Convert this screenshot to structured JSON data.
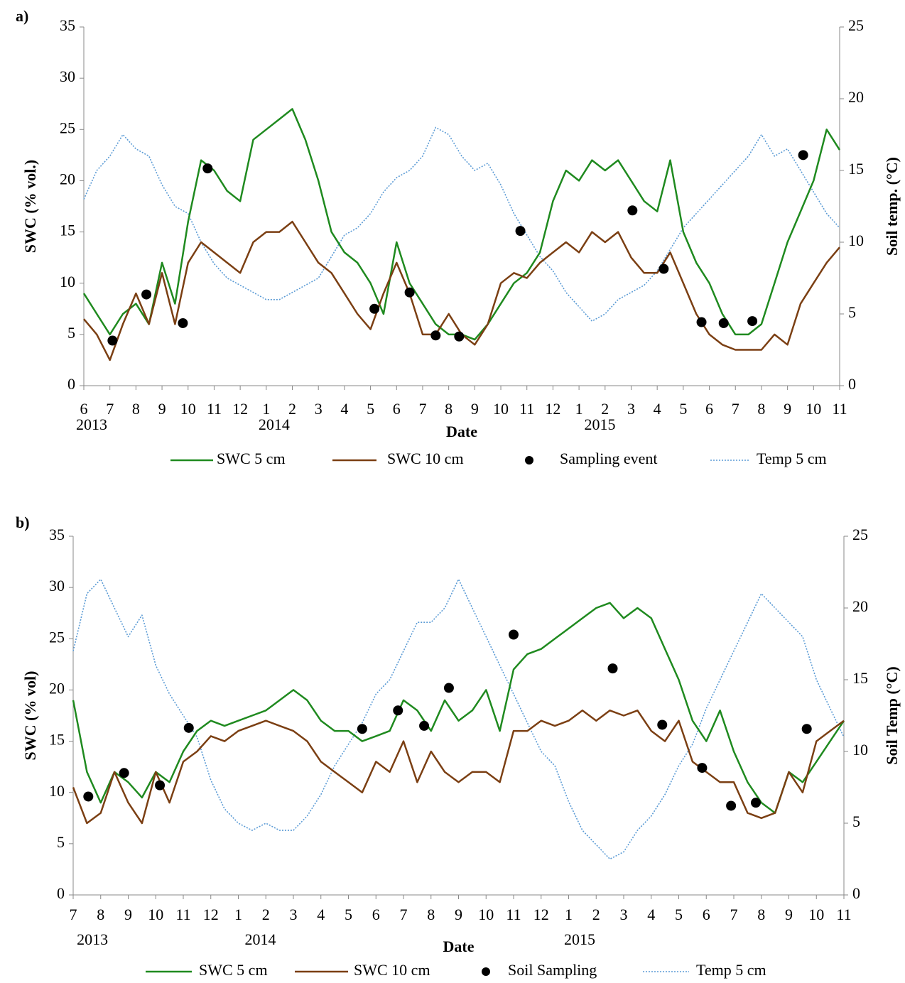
{
  "chart_data": [
    {
      "type": "line",
      "panel_label": "a)",
      "xlabel": "Date",
      "ylabel": "SWC (% vol.)",
      "y2label": "Soil temp. (°C)",
      "xlim": [
        0,
        29
      ],
      "xticks": [
        {
          "value": 0,
          "label": "6"
        },
        {
          "value": 1,
          "label": "7"
        },
        {
          "value": 2,
          "label": "8"
        },
        {
          "value": 3,
          "label": "9"
        },
        {
          "value": 4,
          "label": "10"
        },
        {
          "value": 5,
          "label": "11"
        },
        {
          "value": 6,
          "label": "12"
        },
        {
          "value": 7,
          "label": "1"
        },
        {
          "value": 8,
          "label": "2"
        },
        {
          "value": 9,
          "label": "3"
        },
        {
          "value": 10,
          "label": "4"
        },
        {
          "value": 11,
          "label": "5"
        },
        {
          "value": 12,
          "label": "6"
        },
        {
          "value": 13,
          "label": "7"
        },
        {
          "value": 14,
          "label": "8"
        },
        {
          "value": 15,
          "label": "9"
        },
        {
          "value": 16,
          "label": "10"
        },
        {
          "value": 17,
          "label": "11"
        },
        {
          "value": 18,
          "label": "12"
        },
        {
          "value": 19,
          "label": "1"
        },
        {
          "value": 20,
          "label": "2"
        },
        {
          "value": 21,
          "label": "3"
        },
        {
          "value": 22,
          "label": "4"
        },
        {
          "value": 23,
          "label": "5"
        },
        {
          "value": 24,
          "label": "6"
        },
        {
          "value": 25,
          "label": "7"
        },
        {
          "value": 26,
          "label": "8"
        },
        {
          "value": 27,
          "label": "9"
        },
        {
          "value": 28,
          "label": "10"
        },
        {
          "value": 29,
          "label": "11"
        }
      ],
      "year_labels": [
        {
          "label": "2013",
          "x": 0.3
        },
        {
          "label": "2014",
          "x": 7.3
        },
        {
          "label": "2015",
          "x": 19.8
        }
      ],
      "ylim": [
        0,
        35
      ],
      "yticks": [
        0,
        5,
        10,
        15,
        20,
        25,
        30,
        35
      ],
      "y2lim": [
        0,
        25
      ],
      "y2ticks": [
        0,
        5,
        10,
        15,
        20,
        25
      ],
      "x": [
        0,
        0.5,
        1,
        1.5,
        2,
        2.5,
        3,
        3.5,
        4,
        4.5,
        5,
        5.5,
        6,
        6.5,
        7,
        7.5,
        8,
        8.5,
        9,
        9.5,
        10,
        10.5,
        11,
        11.5,
        12,
        12.5,
        13,
        13.5,
        14,
        14.5,
        15,
        15.5,
        16,
        16.5,
        17,
        17.5,
        18,
        18.5,
        19,
        19.5,
        20,
        20.5,
        21,
        21.5,
        22,
        22.5,
        23,
        23.5,
        24,
        24.5,
        25,
        25.5,
        26,
        26.5,
        27,
        27.5,
        28,
        28.5,
        29
      ],
      "series": [
        {
          "name": "SWC 5 cm",
          "type": "line",
          "color": "#1f8a1f",
          "values": [
            9,
            7,
            5,
            7,
            8,
            6,
            12,
            8,
            16,
            22,
            21,
            19,
            18,
            24,
            25,
            26,
            27,
            24,
            20,
            15,
            13,
            12,
            10,
            7,
            14,
            10,
            8,
            6,
            5,
            5,
            4.5,
            6,
            8,
            10,
            11,
            13,
            18,
            21,
            20,
            22,
            21,
            22,
            20,
            18,
            17,
            22,
            15,
            12,
            10,
            7,
            5,
            5,
            6,
            10,
            14,
            17,
            20,
            25,
            23
          ]
        },
        {
          "name": "SWC 10 cm",
          "type": "line",
          "color": "#7b3f13",
          "values": [
            6.5,
            5,
            2.5,
            6,
            9,
            6,
            11,
            6,
            12,
            14,
            13,
            12,
            11,
            14,
            15,
            15,
            16,
            14,
            12,
            11,
            9,
            7,
            5.5,
            9,
            12,
            9,
            5,
            5,
            7,
            5,
            4,
            6,
            10,
            11,
            10.5,
            12,
            13,
            14,
            13,
            15,
            14,
            15,
            12.5,
            11,
            11,
            13,
            10,
            7,
            5,
            4,
            3.5,
            3.5,
            3.5,
            5,
            4,
            8,
            10,
            12,
            13.5
          ]
        },
        {
          "name": "Sampling event",
          "type": "scatter",
          "color": "#000000",
          "x": [
            1.1,
            2.4,
            3.8,
            4.75,
            11.15,
            12.5,
            13.5,
            14.4,
            16.75,
            21.05,
            22.25,
            23.7,
            24.55,
            25.65,
            27.6
          ],
          "values": [
            4.4,
            8.9,
            6.1,
            21.2,
            7.5,
            9.1,
            4.9,
            4.8,
            15.1,
            17.1,
            11.4,
            6.2,
            6.1,
            6.3,
            22.5
          ]
        },
        {
          "name": "Temp 5 cm",
          "type": "line",
          "dashed": true,
          "axis": "y2",
          "color": "#5b9bd5",
          "values": [
            13,
            15,
            16,
            17.5,
            16.5,
            16,
            14,
            12.5,
            12,
            10,
            8.5,
            7.5,
            7,
            6.5,
            6,
            6,
            6.5,
            7,
            7.5,
            9,
            10.5,
            11,
            12,
            13.5,
            14.5,
            15,
            16,
            18,
            17.5,
            16,
            15,
            15.5,
            14,
            12,
            10.5,
            9,
            8,
            6.5,
            5.5,
            4.5,
            5,
            6,
            6.5,
            7,
            8,
            9.5,
            11,
            12,
            13,
            14,
            15,
            16,
            17.5,
            16,
            16.5,
            15,
            13.5,
            12,
            11
          ]
        }
      ]
    },
    {
      "type": "line",
      "panel_label": "b)",
      "xlabel": "Date",
      "ylabel": "SWC (% vol)",
      "y2label": "Soil Temp (°C)",
      "xlim": [
        0,
        28
      ],
      "xticks": [
        {
          "value": 0,
          "label": "7"
        },
        {
          "value": 1,
          "label": "8"
        },
        {
          "value": 2,
          "label": "9"
        },
        {
          "value": 3,
          "label": "10"
        },
        {
          "value": 4,
          "label": "11"
        },
        {
          "value": 5,
          "label": "12"
        },
        {
          "value": 6,
          "label": "1"
        },
        {
          "value": 7,
          "label": "2"
        },
        {
          "value": 8,
          "label": "3"
        },
        {
          "value": 9,
          "label": "4"
        },
        {
          "value": 10,
          "label": "5"
        },
        {
          "value": 11,
          "label": "6"
        },
        {
          "value": 12,
          "label": "7"
        },
        {
          "value": 13,
          "label": "8"
        },
        {
          "value": 14,
          "label": "9"
        },
        {
          "value": 15,
          "label": "10"
        },
        {
          "value": 16,
          "label": "11"
        },
        {
          "value": 17,
          "label": "12"
        },
        {
          "value": 18,
          "label": "1"
        },
        {
          "value": 19,
          "label": "2"
        },
        {
          "value": 20,
          "label": "3"
        },
        {
          "value": 21,
          "label": "4"
        },
        {
          "value": 22,
          "label": "5"
        },
        {
          "value": 23,
          "label": "6"
        },
        {
          "value": 24,
          "label": "7"
        },
        {
          "value": 25,
          "label": "8"
        },
        {
          "value": 26,
          "label": "9"
        },
        {
          "value": 27,
          "label": "10"
        },
        {
          "value": 28,
          "label": "11"
        }
      ],
      "year_labels": [
        {
          "label": "2013",
          "x": 0.7
        },
        {
          "label": "2014",
          "x": 6.8
        },
        {
          "label": "2015",
          "x": 18.4
        }
      ],
      "ylim": [
        0,
        35
      ],
      "yticks": [
        0,
        5,
        10,
        15,
        20,
        25,
        30,
        35
      ],
      "y2lim": [
        0,
        25
      ],
      "y2ticks": [
        0,
        5,
        10,
        15,
        20,
        25
      ],
      "x": [
        0,
        0.5,
        1,
        1.5,
        2,
        2.5,
        3,
        3.5,
        4,
        4.5,
        5,
        5.5,
        6,
        6.5,
        7,
        7.5,
        8,
        8.5,
        9,
        9.5,
        10,
        10.5,
        11,
        11.5,
        12,
        12.5,
        13,
        13.5,
        14,
        14.5,
        15,
        15.5,
        16,
        16.5,
        17,
        17.5,
        18,
        18.5,
        19,
        19.5,
        20,
        20.5,
        21,
        21.5,
        22,
        22.5,
        23,
        23.5,
        24,
        24.5,
        25,
        25.5,
        26,
        26.5,
        27,
        27.5,
        28
      ],
      "series": [
        {
          "name": "SWC 5 cm",
          "type": "line",
          "color": "#1f8a1f",
          "values": [
            19,
            12,
            9,
            12,
            11,
            9.5,
            12,
            11,
            14,
            16,
            17,
            16.5,
            17,
            17.5,
            18,
            19,
            20,
            19,
            17,
            16,
            16,
            15,
            15.5,
            16,
            19,
            18,
            16,
            19,
            17,
            18,
            20,
            16,
            22,
            23.5,
            24,
            25,
            26,
            27,
            28,
            28.5,
            27,
            28,
            27,
            24,
            21,
            17,
            15,
            18,
            14,
            11,
            9,
            8,
            12,
            11,
            13,
            15,
            17
          ]
        },
        {
          "name": "SWC 10 cm",
          "type": "line",
          "color": "#7b3f13",
          "values": [
            10.5,
            7,
            8,
            12,
            9,
            7,
            12,
            9,
            13,
            14,
            15.5,
            15,
            16,
            16.5,
            17,
            16.5,
            16,
            15,
            13,
            12,
            11,
            10,
            13,
            12,
            15,
            11,
            14,
            12,
            11,
            12,
            12,
            11,
            16,
            16,
            17,
            16.5,
            17,
            18,
            17,
            18,
            17.5,
            18,
            16,
            15,
            17,
            13,
            12,
            11,
            11,
            8,
            7.5,
            8,
            12,
            10,
            15,
            16,
            17
          ]
        },
        {
          "name": "Soil Sampling",
          "type": "scatter",
          "color": "#000000",
          "x": [
            0.55,
            1.85,
            3.15,
            4.2,
            10.5,
            11.8,
            12.75,
            13.65,
            16,
            19.6,
            21.4,
            22.85,
            23.9,
            24.8,
            26.65
          ],
          "values": [
            9.6,
            11.9,
            10.7,
            16.3,
            16.2,
            18,
            16.5,
            20.2,
            25.4,
            22.1,
            16.6,
            12.4,
            8.7,
            9,
            16.2
          ]
        },
        {
          "name": "Temp 5 cm",
          "type": "line",
          "dashed": true,
          "axis": "y2",
          "color": "#5b9bd5",
          "values": [
            17,
            21,
            22,
            20,
            18,
            19.5,
            16,
            14,
            12.5,
            11,
            8,
            6,
            5,
            4.5,
            5,
            4.5,
            4.5,
            5.5,
            7,
            9,
            10.5,
            12,
            14,
            15,
            17,
            19,
            19,
            20,
            22,
            20,
            18,
            16,
            14,
            12,
            10,
            9,
            6.5,
            4.5,
            3.5,
            2.5,
            3,
            4.5,
            5.5,
            7,
            9,
            10.5,
            13,
            15,
            17,
            19,
            21,
            20,
            19,
            18,
            15,
            13,
            11
          ]
        }
      ]
    }
  ]
}
